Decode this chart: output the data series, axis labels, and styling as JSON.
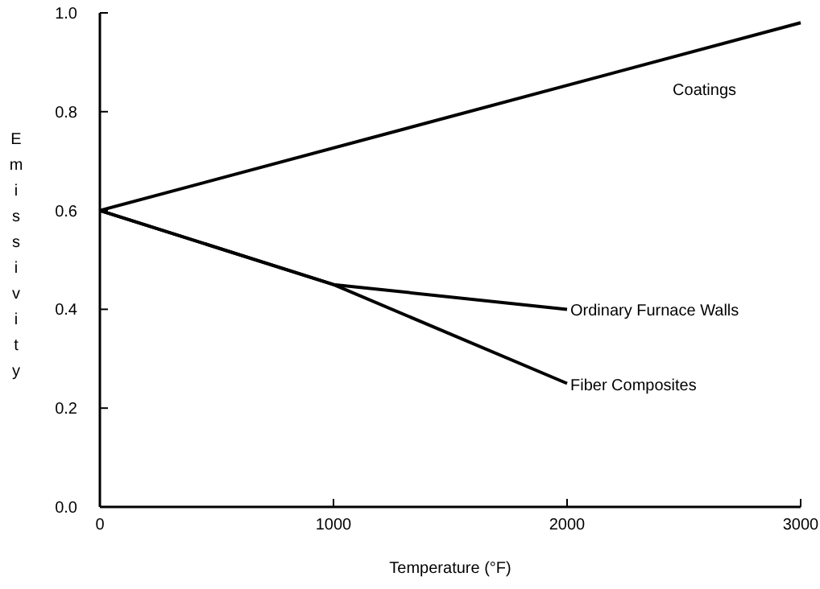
{
  "chart_data": {
    "type": "line",
    "xlabel": "Temperature (°F)",
    "ylabel": "Emissivity",
    "xlim": [
      0,
      3000
    ],
    "xticks": [
      0,
      1000,
      2000,
      3000
    ],
    "ylim": [
      0,
      1
    ],
    "yticks": [
      {
        "value": 0,
        "label": "0.0"
      },
      {
        "value": 0.2,
        "label": "0.2"
      },
      {
        "value": 0.4,
        "label": "0.4"
      },
      {
        "value": 0.6,
        "label": "0.6"
      },
      {
        "value": 0.8,
        "label": "0.8"
      },
      {
        "value": 1,
        "label": "1.0"
      }
    ],
    "grid": false,
    "legend": false,
    "marker": "none",
    "line_style": "solid",
    "series": [
      {
        "name": "Coatings",
        "color": "#000000",
        "x": [
          0,
          3000
        ],
        "values": [
          0.6,
          0.98
        ]
      },
      {
        "name": "Ordinary Furnace Walls",
        "color": "#000000",
        "x": [
          0,
          1000,
          2000
        ],
        "values": [
          0.6,
          0.45,
          0.4
        ]
      },
      {
        "name": "Fiber Composites",
        "color": "#000000",
        "x": [
          0,
          1000,
          2000
        ],
        "values": [
          0.6,
          0.45,
          0.25
        ]
      }
    ]
  }
}
